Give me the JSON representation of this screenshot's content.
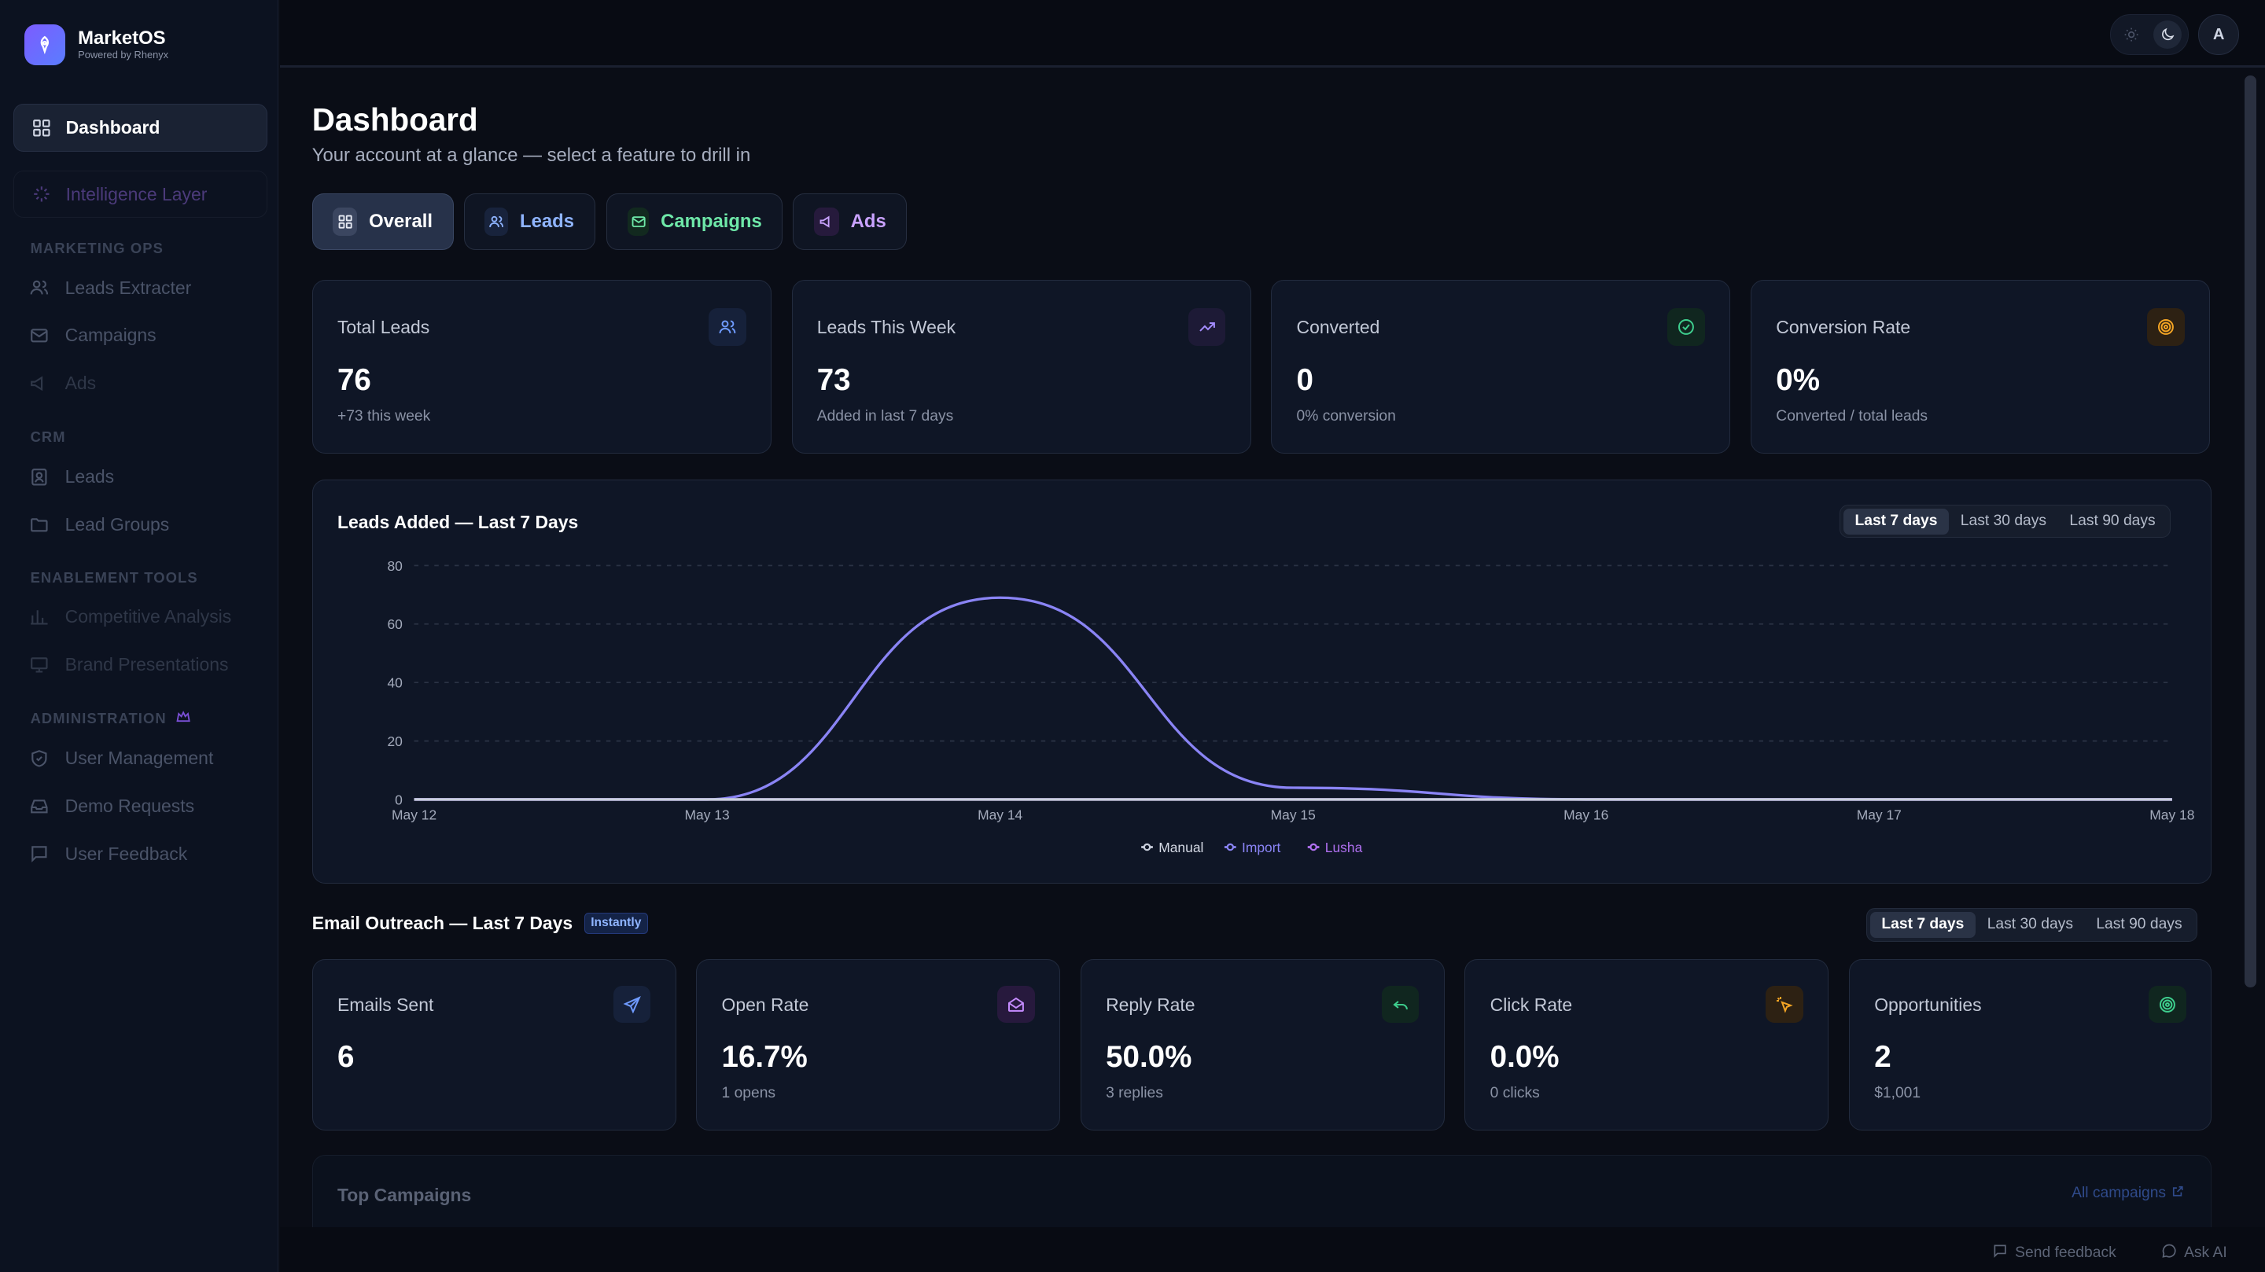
{
  "brand": {
    "name": "MarketOS",
    "sub": "Powered by Rhenyx"
  },
  "sidebar": {
    "active": "Dashboard",
    "intelligence": "Intelligence Layer",
    "sections": [
      {
        "title": "Marketing Ops",
        "items": [
          "Leads Extracter",
          "Campaigns",
          "Ads"
        ]
      },
      {
        "title": "CRM",
        "items": [
          "Leads",
          "Lead Groups"
        ]
      },
      {
        "title": "Enablement Tools",
        "items": [
          "Competitive Analysis",
          "Brand Presentations"
        ]
      },
      {
        "title": "Administration",
        "items": [
          "User Management",
          "Demo Requests",
          "User Feedback"
        ]
      }
    ]
  },
  "topbar": {
    "avatar": "A"
  },
  "page": {
    "title": "Dashboard",
    "subtitle": "Your account at a glance — select a feature to drill in"
  },
  "tabs": [
    "Overall",
    "Leads",
    "Campaigns",
    "Ads"
  ],
  "stats": [
    {
      "label": "Total Leads",
      "value": "76",
      "sub": "+73 this week",
      "icon": "users-icon",
      "color": "#6f9bff"
    },
    {
      "label": "Leads This Week",
      "value": "73",
      "sub": "Added in last 7 days",
      "icon": "trending-up-icon",
      "color": "#a48cff"
    },
    {
      "label": "Converted",
      "value": "0",
      "sub": "0% conversion",
      "icon": "check-circle-icon",
      "color": "#3ecf8e"
    },
    {
      "label": "Conversion Rate",
      "value": "0%",
      "sub": "Converted / total leads",
      "icon": "target-icon",
      "color": "#f5a524"
    }
  ],
  "leads_chart": {
    "title": "Leads Added — Last 7 Days",
    "ranges": [
      "Last 7 days",
      "Last 30 days",
      "Last 90 days"
    ],
    "selected_range": "Last 7 days"
  },
  "chart_data": {
    "type": "line",
    "x": [
      "May 12",
      "May 13",
      "May 14",
      "May 15",
      "May 16",
      "May 17",
      "May 18"
    ],
    "series": [
      {
        "name": "Manual",
        "values": [
          0,
          0,
          0,
          0,
          0,
          0,
          0
        ],
        "color": "#c9cfdc"
      },
      {
        "name": "Import",
        "values": [
          0,
          0,
          69,
          4,
          0,
          0,
          0
        ],
        "color": "#8a84f5"
      },
      {
        "name": "Lusha",
        "values": [
          0,
          0,
          0,
          0,
          0,
          0,
          0
        ],
        "color": "#b070f0"
      }
    ],
    "ylim": [
      0,
      80
    ],
    "yticks": [
      0,
      20,
      40,
      60,
      80
    ],
    "grid": true,
    "legend": "bottom-center"
  },
  "email": {
    "title": "Email Outreach — Last 7 Days",
    "badge": "Instantly",
    "ranges": [
      "Last 7 days",
      "Last 30 days",
      "Last 90 days"
    ],
    "selected_range": "Last 7 days",
    "cards": [
      {
        "label": "Emails Sent",
        "value": "6",
        "sub": "",
        "icon": "send-icon",
        "color": "#6f9bff"
      },
      {
        "label": "Open Rate",
        "value": "16.7%",
        "sub": "1 opens",
        "icon": "mail-open-icon",
        "color": "#c58bff"
      },
      {
        "label": "Reply Rate",
        "value": "50.0%",
        "sub": "3 replies",
        "icon": "reply-icon",
        "color": "#3ecf8e"
      },
      {
        "label": "Click Rate",
        "value": "0.0%",
        "sub": "0 clicks",
        "icon": "click-icon",
        "color": "#f5a524"
      },
      {
        "label": "Opportunities",
        "value": "2",
        "sub": "$1,001",
        "icon": "target-icon",
        "color": "#3ecf8e"
      }
    ]
  },
  "top_campaigns": {
    "title": "Top Campaigns",
    "link": "All campaigns"
  },
  "footer": {
    "feedback": "Send feedback",
    "ask": "Ask AI"
  }
}
